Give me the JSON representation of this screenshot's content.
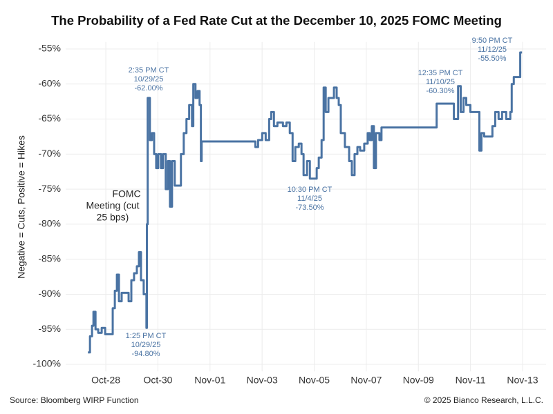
{
  "chart_data": {
    "type": "line",
    "title": "The Probability of a Fed Rate Cut at the December 10, 2025 FOMC Meeting",
    "ylabel": "Negative = Cuts, Positive = Hikes",
    "source": "Source: Bloomberg WIRP Function",
    "copyright": "© 2025 Bianco Research, L.L.C.",
    "ylim": [
      -101,
      -54
    ],
    "yticks": [
      {
        "value": -55,
        "label": "-55%"
      },
      {
        "value": -60,
        "label": "-60%"
      },
      {
        "value": -65,
        "label": "-65%"
      },
      {
        "value": -70,
        "label": "-70%"
      },
      {
        "value": -75,
        "label": "-75%"
      },
      {
        "value": -80,
        "label": "-80%"
      },
      {
        "value": -85,
        "label": "-85%"
      },
      {
        "value": -90,
        "label": "-90%"
      },
      {
        "value": -95,
        "label": "-95%"
      },
      {
        "value": -100,
        "label": "-100%"
      }
    ],
    "xlim": [
      "2025-10-26T11:00",
      "2025-11-13T21:40"
    ],
    "xticks": [
      {
        "value": "2025-10-28T00:00",
        "label": "Oct-28"
      },
      {
        "value": "2025-10-30T00:00",
        "label": "Oct-30"
      },
      {
        "value": "2025-11-01T00:00",
        "label": "Nov-01"
      },
      {
        "value": "2025-11-03T00:00",
        "label": "Nov-03"
      },
      {
        "value": "2025-11-05T00:00",
        "label": "Nov-05"
      },
      {
        "value": "2025-11-07T00:00",
        "label": "Nov-07"
      },
      {
        "value": "2025-11-09T00:00",
        "label": "Nov-09"
      },
      {
        "value": "2025-11-11T00:00",
        "label": "Nov-11"
      },
      {
        "value": "2025-11-13T00:00",
        "label": "Nov-13"
      }
    ],
    "grid": true,
    "drawstyle": "steps-post",
    "x": [
      "2025-10-27T07:30",
      "2025-10-27T09:24",
      "2025-10-27T11:18",
      "2025-10-27T12:36",
      "2025-10-27T14:30",
      "2025-10-27T17:00",
      "2025-10-27T20:12",
      "2025-10-27T23:24",
      "2025-10-28T03:12",
      "2025-10-28T06:21",
      "2025-10-28T08:18",
      "2025-10-28T10:12",
      "2025-10-28T12:06",
      "2025-10-28T14:36",
      "2025-10-28T18:24",
      "2025-10-28T21:00",
      "2025-10-28T23:30",
      "2025-10-29T02:00",
      "2025-10-29T04:36",
      "2025-10-29T06:30",
      "2025-10-29T08:24",
      "2025-10-29T10:54",
      "2025-10-29T13:25",
      "2025-10-29T13:50",
      "2025-10-29T14:35",
      "2025-10-29T16:36",
      "2025-10-29T18:30",
      "2025-10-29T20:30",
      "2025-10-29T22:24",
      "2025-10-30T00:18",
      "2025-10-30T02:48",
      "2025-10-30T04:42",
      "2025-10-30T07:12",
      "2025-10-30T09:12",
      "2025-10-30T11:06",
      "2025-10-30T13:00",
      "2025-10-30T15:30",
      "2025-10-30T18:42",
      "2025-10-30T21:12",
      "2025-10-30T23:48",
      "2025-10-31T02:18",
      "2025-10-31T04:48",
      "2025-10-31T07:24",
      "2025-10-31T08:36",
      "2025-10-31T10:36",
      "2025-10-31T12:30",
      "2025-10-31T14:24",
      "2025-10-31T15:36",
      "2025-10-31T16:18",
      "2025-11-02T16:30",
      "2025-11-02T17:48",
      "2025-11-02T20:18",
      "2025-11-03T00:06",
      "2025-11-03T03:18",
      "2025-11-03T06:30",
      "2025-11-03T08:24",
      "2025-11-03T10:54",
      "2025-11-03T14:06",
      "2025-11-03T19:12",
      "2025-11-03T22:24",
      "2025-11-04T01:30",
      "2025-11-04T04:06",
      "2025-11-04T06:36",
      "2025-11-04T09:48",
      "2025-11-04T12:18",
      "2025-11-04T14:12",
      "2025-11-04T17:24",
      "2025-11-04T20:00",
      "2025-11-04T22:30",
      "2025-11-05T02:18",
      "2025-11-05T04:12",
      "2025-11-05T06:48",
      "2025-11-05T08:42",
      "2025-11-05T10:36",
      "2025-11-05T13:06",
      "2025-11-05T15:36",
      "2025-11-05T18:12",
      "2025-11-05T20:42",
      "2025-11-05T22:36",
      "2025-11-06T00:30",
      "2025-11-06T04:18",
      "2025-11-06T08:12",
      "2025-11-06T10:42",
      "2025-11-06T13:12",
      "2025-11-06T15:48",
      "2025-11-06T18:18",
      "2025-11-06T22:06",
      "2025-11-07T01:18",
      "2025-11-07T03:12",
      "2025-11-07T05:06",
      "2025-11-07T07:00",
      "2025-11-07T08:54",
      "2025-11-07T12:06",
      "2025-11-07T14:00",
      "2025-11-09T16:12",
      "2025-11-09T16:50",
      "2025-11-10T06:48",
      "2025-11-10T08:42",
      "2025-11-10T12:35",
      "2025-11-10T15:00",
      "2025-11-10T17:36",
      "2025-11-10T20:06",
      "2025-11-10T23:54",
      "2025-11-11T06:18",
      "2025-11-11T08:12",
      "2025-11-11T10:06",
      "2025-11-11T12:36",
      "2025-11-11T17:42",
      "2025-11-11T20:12",
      "2025-11-11T22:48",
      "2025-11-12T01:54",
      "2025-11-12T05:06",
      "2025-11-12T08:54",
      "2025-11-12T12:42",
      "2025-11-12T14:00",
      "2025-11-12T15:54",
      "2025-11-12T21:50",
      "2025-11-12T23:30"
    ],
    "series": [
      {
        "name": "Probability",
        "color": "#4a73a3",
        "values": [
          -98.3,
          -96,
          -94.5,
          -92.5,
          -95,
          -95.5,
          -94.8,
          -95.7,
          -95.7,
          -92,
          -89.5,
          -87.2,
          -91,
          -89.8,
          -89.8,
          -91,
          -88,
          -87,
          -86,
          -84,
          -88,
          -90,
          -94.8,
          -80,
          -62,
          -68,
          -67,
          -70,
          -72,
          -70,
          -72,
          -70,
          -75,
          -71,
          -77.5,
          -71,
          -74.5,
          -74.5,
          -70,
          -67,
          -65,
          -63,
          -66,
          -60,
          -62,
          -61,
          -63,
          -71,
          -68.2,
          -68.2,
          -69,
          -68,
          -67,
          -68,
          -65,
          -64,
          -66,
          -65.5,
          -66,
          -65.5,
          -67,
          -71,
          -69,
          -68.5,
          -70,
          -73,
          -71,
          -73.5,
          -73.5,
          -72,
          -70.5,
          -68,
          -60.5,
          -64,
          -62,
          -62,
          -60.5,
          -62,
          -63,
          -67,
          -69,
          -71,
          -73,
          -70,
          -69,
          -69.5,
          -68.5,
          -67,
          -68,
          -66,
          -72,
          -67,
          -68,
          -66.2,
          -66.2,
          -62.8,
          -62.8,
          -65,
          -60.3,
          -64,
          -62,
          -63,
          -64,
          -64,
          -69.5,
          -67,
          -67.5,
          -67.5,
          -66,
          -64,
          -65,
          -64,
          -65,
          -64,
          -60,
          -59,
          -55.5,
          -55.5
        ]
      }
    ],
    "annotations": [
      {
        "lines": [
          "2:35 PM CT",
          "10/29/25",
          "-62.00%"
        ]
      },
      {
        "lines": [
          "1:25 PM CT",
          "10/29/25",
          "-94.80%"
        ]
      },
      {
        "lines": [
          "FOMC",
          "Meeting (cut",
          "25 bps)"
        ]
      },
      {
        "lines": [
          "10:30 PM CT",
          "11/4/25",
          "-73.50%"
        ]
      },
      {
        "lines": [
          "12:35 PM CT",
          "11/10/25",
          "-60.30%"
        ]
      },
      {
        "lines": [
          "9:50 PM CT",
          "11/12/25",
          "-55.50%"
        ]
      }
    ]
  }
}
